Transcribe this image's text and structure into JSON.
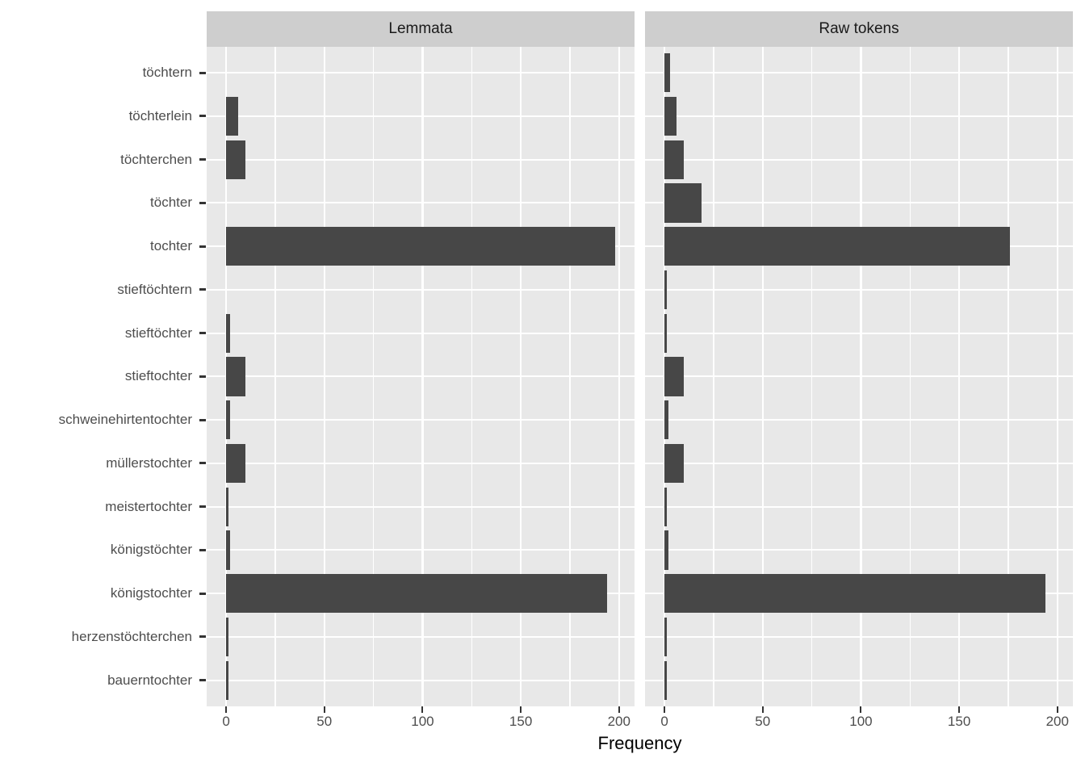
{
  "chart_data": {
    "type": "bar",
    "orientation": "horizontal",
    "facets": [
      {
        "label": "Lemmata"
      },
      {
        "label": "Raw tokens"
      }
    ],
    "categories_top_to_bottom": [
      "töchtern",
      "töchterlein",
      "töchterchen",
      "töchter",
      "tochter",
      "stieftöchtern",
      "stieftöchter",
      "stieftochter",
      "schweinehirtentochter",
      "müllerstochter",
      "meistertochter",
      "königstöchter",
      "königstochter",
      "herzenstöchterchen",
      "bauerntochter"
    ],
    "series": [
      {
        "name": "Lemmata",
        "values": [
          0,
          6,
          10,
          0,
          198,
          0,
          2,
          10,
          2,
          10,
          1,
          2,
          194,
          1,
          1
        ]
      },
      {
        "name": "Raw tokens",
        "values": [
          3,
          6,
          10,
          19,
          176,
          1,
          1,
          10,
          2,
          10,
          1,
          2,
          194,
          1,
          1
        ]
      }
    ],
    "xlabel": "Frequency",
    "x_ticks": [
      0,
      50,
      100,
      150,
      200
    ],
    "x_minor_ticks": [
      25,
      75,
      125,
      175
    ],
    "xlim": [
      0,
      200
    ],
    "legend": "none",
    "grid": "on",
    "colors": {
      "bar": "#474747",
      "panel_background": "#E8E8E8",
      "strip_background": "#CECECE",
      "gridline": "#FFFFFF",
      "axis_text": "#4D4D4D",
      "strip_text": "#1A1A1A",
      "tick_mark": "#333333",
      "axis_title": "#000000"
    }
  }
}
